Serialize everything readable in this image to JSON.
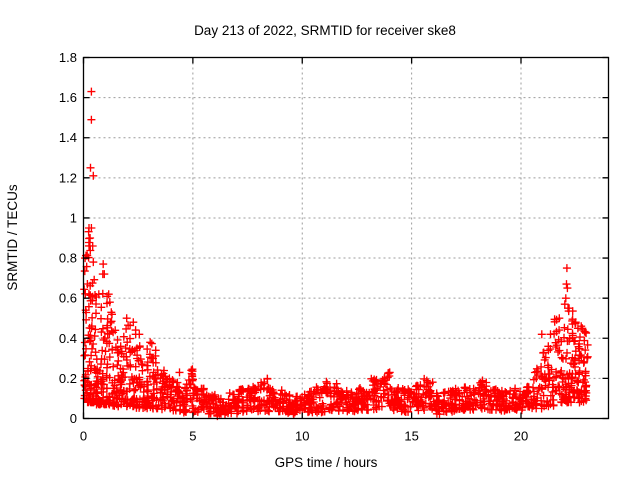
{
  "title": "Day 213 of 2022, SRMTID for receiver ske8",
  "xlabel": "GPS time / hours",
  "ylabel": "SRMTID / TECUs",
  "chart_data": {
    "type": "scatter",
    "title": "Day 213 of 2022, SRMTID for receiver ske8",
    "xlabel": "GPS time / hours",
    "ylabel": "SRMTID / TECUs",
    "xlim": [
      0,
      24
    ],
    "ylim": [
      0,
      1.8
    ],
    "x_ticks": [
      0,
      5,
      10,
      15,
      20
    ],
    "y_ticks": [
      0,
      0.2,
      0.4,
      0.6,
      0.8,
      1.0,
      1.2,
      1.4,
      1.6,
      1.8
    ],
    "y_tick_labels": [
      "0",
      "0.2",
      "0.4",
      "0.6",
      "0.8",
      "1",
      "1.2",
      "1.4",
      "1.6",
      "1.8"
    ],
    "grid": true,
    "legend": "none",
    "marker": "plus",
    "marker_color": "#ff0000",
    "grid_color": "#9c9c9c",
    "border_color": "#000000",
    "outlier_points": [
      [
        0.36,
        1.63
      ],
      [
        0.36,
        1.49
      ],
      [
        0.32,
        1.25
      ],
      [
        0.45,
        1.21
      ],
      [
        0.36,
        0.95
      ],
      [
        0.3,
        0.9
      ],
      [
        0.42,
        0.86
      ],
      [
        0.9,
        0.77
      ],
      [
        0.88,
        0.72
      ],
      [
        1.15,
        0.62
      ],
      [
        22.1,
        0.75
      ],
      [
        22.08,
        0.67
      ],
      [
        22.12,
        0.65
      ],
      [
        22.05,
        0.6
      ],
      [
        22.0,
        0.57
      ],
      [
        22.15,
        0.55
      ],
      [
        21.35,
        0.42
      ],
      [
        20.95,
        0.42
      ],
      [
        22.75,
        0.46
      ],
      [
        22.6,
        0.45
      ]
    ],
    "segment_keys": [
      "x_start",
      "x_end",
      "y_min",
      "y_max",
      "n_points"
    ],
    "band_segments": [
      [
        0.0,
        0.15,
        0.1,
        0.8,
        16
      ],
      [
        0.1,
        0.4,
        0.08,
        0.95,
        48
      ],
      [
        0.3,
        0.6,
        0.08,
        0.78,
        40
      ],
      [
        0.55,
        0.85,
        0.07,
        0.62,
        32
      ],
      [
        0.8,
        1.1,
        0.07,
        0.72,
        30
      ],
      [
        1.05,
        1.35,
        0.07,
        0.58,
        30
      ],
      [
        1.3,
        1.6,
        0.06,
        0.44,
        26
      ],
      [
        1.55,
        1.85,
        0.06,
        0.36,
        24
      ],
      [
        1.8,
        2.15,
        0.06,
        0.5,
        28
      ],
      [
        2.1,
        2.45,
        0.06,
        0.48,
        30
      ],
      [
        2.4,
        2.7,
        0.05,
        0.42,
        26
      ],
      [
        2.65,
        2.95,
        0.05,
        0.3,
        24
      ],
      [
        2.9,
        3.2,
        0.05,
        0.38,
        26
      ],
      [
        3.15,
        3.45,
        0.05,
        0.34,
        24
      ],
      [
        3.4,
        3.75,
        0.04,
        0.24,
        24
      ],
      [
        3.7,
        4.1,
        0.04,
        0.2,
        26
      ],
      [
        4.05,
        4.45,
        0.04,
        0.25,
        26
      ],
      [
        4.4,
        4.75,
        0.03,
        0.18,
        24
      ],
      [
        4.7,
        5.1,
        0.03,
        0.25,
        26
      ],
      [
        5.1,
        5.6,
        0.03,
        0.15,
        30
      ],
      [
        5.6,
        6.1,
        0.02,
        0.12,
        30
      ],
      [
        6.1,
        6.6,
        0.01,
        0.1,
        30
      ],
      [
        6.6,
        7.1,
        0.02,
        0.13,
        30
      ],
      [
        7.1,
        7.6,
        0.03,
        0.15,
        30
      ],
      [
        7.6,
        8.1,
        0.03,
        0.16,
        30
      ],
      [
        8.1,
        8.6,
        0.03,
        0.2,
        30
      ],
      [
        8.6,
        9.1,
        0.03,
        0.15,
        30
      ],
      [
        9.1,
        9.6,
        0.02,
        0.13,
        30
      ],
      [
        9.6,
        10.1,
        0.02,
        0.11,
        30
      ],
      [
        10.1,
        10.6,
        0.03,
        0.14,
        30
      ],
      [
        10.6,
        11.1,
        0.03,
        0.16,
        30
      ],
      [
        11.1,
        11.6,
        0.04,
        0.19,
        30
      ],
      [
        11.6,
        12.1,
        0.03,
        0.14,
        30
      ],
      [
        12.1,
        12.6,
        0.03,
        0.15,
        30
      ],
      [
        12.6,
        13.1,
        0.04,
        0.16,
        30
      ],
      [
        13.1,
        13.6,
        0.04,
        0.2,
        30
      ],
      [
        13.6,
        14.0,
        0.05,
        0.23,
        24
      ],
      [
        14.0,
        14.5,
        0.04,
        0.16,
        30
      ],
      [
        14.5,
        15.0,
        0.03,
        0.15,
        30
      ],
      [
        15.0,
        15.5,
        0.04,
        0.18,
        30
      ],
      [
        15.5,
        16.0,
        0.04,
        0.21,
        30
      ],
      [
        16.0,
        16.5,
        0.02,
        0.13,
        30
      ],
      [
        16.5,
        17.0,
        0.03,
        0.14,
        30
      ],
      [
        17.0,
        17.5,
        0.04,
        0.16,
        30
      ],
      [
        17.5,
        18.0,
        0.04,
        0.15,
        30
      ],
      [
        18.0,
        18.5,
        0.04,
        0.19,
        30
      ],
      [
        18.5,
        19.0,
        0.03,
        0.15,
        30
      ],
      [
        19.0,
        19.5,
        0.03,
        0.14,
        30
      ],
      [
        19.5,
        20.0,
        0.04,
        0.15,
        30
      ],
      [
        20.0,
        20.5,
        0.04,
        0.17,
        30
      ],
      [
        20.5,
        21.0,
        0.05,
        0.26,
        32
      ],
      [
        21.0,
        21.5,
        0.06,
        0.36,
        34
      ],
      [
        21.5,
        22.0,
        0.08,
        0.5,
        40
      ],
      [
        22.0,
        22.4,
        0.08,
        0.55,
        40
      ],
      [
        22.3,
        22.7,
        0.1,
        0.48,
        36
      ],
      [
        22.6,
        23.0,
        0.08,
        0.45,
        34
      ],
      [
        22.85,
        23.05,
        0.12,
        0.43,
        12
      ]
    ]
  }
}
